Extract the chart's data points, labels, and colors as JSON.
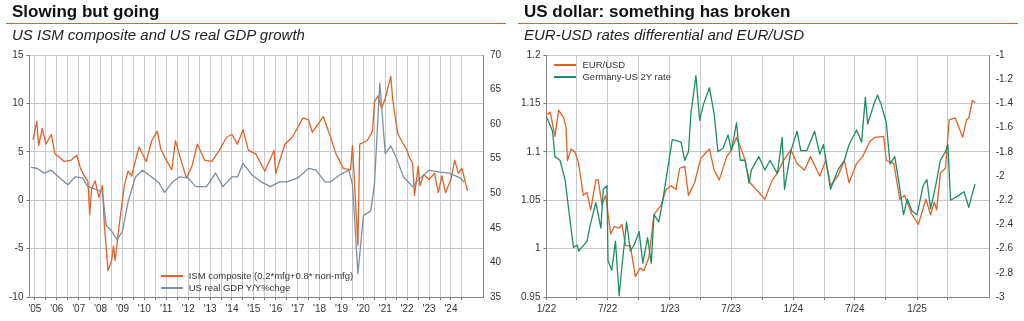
{
  "chart_data": [
    {
      "type": "line",
      "title": "Slowing but going",
      "subtitle": "US ISM composite and US real GDP growth",
      "xlim": [
        "2005-04",
        "2026-01"
      ],
      "xticks": [
        {
          "value": "2005-07",
          "label": "'05"
        },
        {
          "value": "2006-01",
          "label": null
        },
        {
          "value": "2006-07",
          "label": "'06"
        },
        {
          "value": "2007-01",
          "label": null
        },
        {
          "value": "2007-07",
          "label": "'07"
        },
        {
          "value": "2008-01",
          "label": null
        },
        {
          "value": "2008-07",
          "label": "'08"
        },
        {
          "value": "2009-01",
          "label": null
        },
        {
          "value": "2009-07",
          "label": "'09"
        },
        {
          "value": "2010-01",
          "label": null
        },
        {
          "value": "2010-07",
          "label": "'10"
        },
        {
          "value": "2011-01",
          "label": null
        },
        {
          "value": "2011-07",
          "label": "'11"
        },
        {
          "value": "2012-01",
          "label": null
        },
        {
          "value": "2012-07",
          "label": "'12"
        },
        {
          "value": "2013-01",
          "label": null
        },
        {
          "value": "2013-07",
          "label": "'13"
        },
        {
          "value": "2014-01",
          "label": null
        },
        {
          "value": "2014-07",
          "label": "'14"
        },
        {
          "value": "2015-01",
          "label": null
        },
        {
          "value": "2015-07",
          "label": "'15"
        },
        {
          "value": "2016-01",
          "label": null
        },
        {
          "value": "2016-07",
          "label": "'16"
        },
        {
          "value": "2017-01",
          "label": null
        },
        {
          "value": "2017-07",
          "label": "'17"
        },
        {
          "value": "2018-01",
          "label": null
        },
        {
          "value": "2018-07",
          "label": "'18"
        },
        {
          "value": "2019-01",
          "label": null
        },
        {
          "value": "2019-07",
          "label": "'19"
        },
        {
          "value": "2020-01",
          "label": null
        },
        {
          "value": "2020-07",
          "label": "'20"
        },
        {
          "value": "2021-01",
          "label": null
        },
        {
          "value": "2021-07",
          "label": "'21"
        },
        {
          "value": "2022-01",
          "label": null
        },
        {
          "value": "2022-07",
          "label": "'22"
        },
        {
          "value": "2023-01",
          "label": null
        },
        {
          "value": "2023-07",
          "label": "'23"
        },
        {
          "value": "2024-01",
          "label": null
        },
        {
          "value": "2024-07",
          "label": "'24"
        },
        {
          "value": "2025-01",
          "label": null
        }
      ],
      "ylim": [
        -10,
        15
      ],
      "yticks": [
        -10,
        -5,
        0,
        5,
        10,
        15
      ],
      "y2lim": [
        35,
        70
      ],
      "y2ticks": [
        35,
        40,
        45,
        50,
        55,
        60,
        65,
        70
      ],
      "grid": true,
      "legend": "bottom",
      "series": [
        {
          "name": "ISM composite (0.2*mfg+0.8* non-mfg)",
          "color": "#e0622b",
          "axis": "y2",
          "x": [
            "2005-06",
            "2005-08",
            "2005-09",
            "2005-11",
            "2006-01",
            "2006-04",
            "2006-06",
            "2006-08",
            "2006-11",
            "2007-03",
            "2007-06",
            "2007-08",
            "2007-10",
            "2007-12",
            "2008-01",
            "2008-02",
            "2008-04",
            "2008-06",
            "2008-08",
            "2008-09",
            "2008-11",
            "2009-01",
            "2009-02",
            "2009-03",
            "2009-05",
            "2009-08",
            "2009-10",
            "2009-12",
            "2010-04",
            "2010-08",
            "2010-11",
            "2011-02",
            "2011-04",
            "2011-07",
            "2011-10",
            "2011-12",
            "2012-02",
            "2012-06",
            "2012-09",
            "2012-12",
            "2013-04",
            "2013-08",
            "2013-12",
            "2014-04",
            "2014-07",
            "2014-10",
            "2015-01",
            "2015-04",
            "2015-08",
            "2016-01",
            "2016-06",
            "2016-07",
            "2016-12",
            "2017-04",
            "2017-10",
            "2018-01",
            "2018-03",
            "2018-09",
            "2019-01",
            "2019-04",
            "2019-08",
            "2019-12",
            "2020-01",
            "2020-04",
            "2020-05",
            "2020-09",
            "2020-12",
            "2021-01",
            "2021-03",
            "2021-05",
            "2021-07",
            "2021-10",
            "2021-11",
            "2022-01",
            "2022-02",
            "2022-05",
            "2022-07",
            "2022-08",
            "2022-10",
            "2022-11",
            "2023-01",
            "2023-02",
            "2023-04",
            "2023-07",
            "2023-10",
            "2023-12",
            "2024-02",
            "2024-04",
            "2024-07",
            "2024-09",
            "2024-11",
            "2025-01",
            "2025-03",
            "2025-04"
          ],
          "values": [
            57.8,
            60.4,
            56.9,
            59.4,
            57.1,
            58.5,
            55.7,
            55.3,
            54.6,
            54.8,
            55.5,
            53.6,
            52.5,
            51.8,
            46.9,
            50.6,
            51.8,
            49.4,
            51.1,
            45.5,
            38.8,
            40.3,
            42.4,
            40.3,
            45.0,
            51.1,
            53.2,
            52.5,
            56.7,
            54.6,
            57.6,
            59.0,
            56.4,
            54.8,
            53.4,
            57.6,
            55.7,
            52.2,
            53.9,
            57.1,
            54.8,
            54.6,
            56.2,
            58.1,
            58.5,
            57.1,
            59.2,
            56.2,
            55.7,
            53.2,
            56.2,
            52.9,
            57.1,
            58.1,
            60.9,
            60.6,
            58.8,
            61.1,
            58.1,
            55.7,
            53.6,
            53.4,
            56.9,
            42.5,
            57.1,
            57.6,
            59.0,
            63.2,
            64.1,
            62.3,
            63.7,
            66.9,
            63.7,
            59.9,
            58.5,
            57.1,
            56.2,
            55.3,
            54.3,
            49.7,
            53.9,
            51.1,
            52.7,
            52.0,
            52.9,
            50.1,
            52.5,
            50.1,
            52.0,
            54.8,
            52.9,
            53.6,
            51.5,
            50.4
          ]
        },
        {
          "name": "US real GDP Y/Y%chge",
          "color": "#7a8fa0",
          "x": [
            "2005-05",
            "2005-08",
            "2005-12",
            "2006-04",
            "2006-08",
            "2007-01",
            "2007-05",
            "2007-09",
            "2007-12",
            "2008-05",
            "2008-08",
            "2008-10",
            "2009-01",
            "2009-04",
            "2009-07",
            "2009-10",
            "2010-02",
            "2010-06",
            "2010-11",
            "2011-03",
            "2011-06",
            "2011-10",
            "2012-02",
            "2012-07",
            "2012-11",
            "2013-05",
            "2013-10",
            "2014-02",
            "2014-07",
            "2014-10",
            "2015-01",
            "2015-06",
            "2015-11",
            "2016-04",
            "2016-09",
            "2017-01",
            "2017-07",
            "2018-01",
            "2018-05",
            "2018-10",
            "2019-01",
            "2019-06",
            "2019-11",
            "2020-01",
            "2020-04",
            "2020-07",
            "2020-11",
            "2021-01",
            "2021-04",
            "2021-07",
            "2021-10",
            "2022-01",
            "2022-05",
            "2022-10",
            "2023-01",
            "2023-07",
            "2024-01",
            "2024-06",
            "2024-12",
            "2025-02"
          ],
          "values": [
            3.4,
            3.3,
            2.8,
            3.1,
            2.4,
            1.6,
            2.4,
            2.3,
            1.4,
            1.1,
            0.8,
            -2.6,
            -3.2,
            -4.1,
            -3.2,
            -0.2,
            2.4,
            3.1,
            2.4,
            1.8,
            0.8,
            1.8,
            2.4,
            2.3,
            1.4,
            1.4,
            2.8,
            1.4,
            2.4,
            2.4,
            3.8,
            2.6,
            1.9,
            1.4,
            1.9,
            1.9,
            2.3,
            3.3,
            3.1,
            1.9,
            1.9,
            2.6,
            3.1,
            1.6,
            -7.6,
            -1.6,
            -1.1,
            1.6,
            12.1,
            4.8,
            5.6,
            4.4,
            2.4,
            1.4,
            2.1,
            3.1,
            2.9,
            2.8,
            2.3,
            1.9
          ]
        }
      ]
    },
    {
      "type": "line",
      "title": "US dollar: something has broken",
      "subtitle": "EUR-USD rates differential and EUR/USD",
      "xlim": [
        "2022-01-01",
        "2025-08-04"
      ],
      "xticks": [
        {
          "value": "2022-01",
          "label": "1/22"
        },
        {
          "value": "2022-04",
          "label": null
        },
        {
          "value": "2022-07",
          "label": "7/22"
        },
        {
          "value": "2022-10",
          "label": null
        },
        {
          "value": "2023-01",
          "label": "1/23"
        },
        {
          "value": "2023-04",
          "label": null
        },
        {
          "value": "2023-07",
          "label": "7/23"
        },
        {
          "value": "2023-10",
          "label": null
        },
        {
          "value": "2024-01",
          "label": "1/24"
        },
        {
          "value": "2024-04",
          "label": null
        },
        {
          "value": "2024-07",
          "label": "7/24"
        },
        {
          "value": "2024-10",
          "label": null
        },
        {
          "value": "2025-01",
          "label": "1/25"
        },
        {
          "value": "2025-04",
          "label": null
        }
      ],
      "ylim": [
        0.95,
        1.2
      ],
      "yticks": [
        0.95,
        1,
        1.05,
        1.1,
        1.15,
        1.2
      ],
      "y2lim": [
        -3,
        -1
      ],
      "y2ticks": [
        -3,
        -2.8,
        -2.6,
        -2.4,
        -2.2,
        -2,
        -1.8,
        -1.6,
        -1.4,
        -1.2,
        -1
      ],
      "grid": true,
      "legend": "top left",
      "series": [
        {
          "name": "EUR/USD",
          "color": "#e0622b",
          "x": [
            "2022-01-01",
            "2022-01-12",
            "2022-01-26",
            "2022-02-06",
            "2022-02-21",
            "2022-02-28",
            "2022-03-04",
            "2022-03-15",
            "2022-03-26",
            "2022-04-06",
            "2022-04-20",
            "2022-05-01",
            "2022-05-12",
            "2022-05-27",
            "2022-06-03",
            "2022-06-14",
            "2022-06-25",
            "2022-07-10",
            "2022-07-21",
            "2022-08-04",
            "2022-08-12",
            "2022-08-23",
            "2022-09-06",
            "2022-09-21",
            "2022-10-05",
            "2022-10-16",
            "2022-10-31",
            "2022-11-15",
            "2022-12-06",
            "2022-12-21",
            "2023-01-05",
            "2023-01-19",
            "2023-01-30",
            "2023-02-14",
            "2023-02-25",
            "2023-03-15",
            "2023-04-02",
            "2023-04-20",
            "2023-04-28",
            "2023-05-12",
            "2023-05-27",
            "2023-06-18",
            "2023-07-02",
            "2023-07-17",
            "2023-08-08",
            "2023-08-26",
            "2023-09-21",
            "2023-10-09",
            "2023-10-31",
            "2023-11-15",
            "2023-12-03",
            "2023-12-25",
            "2024-01-12",
            "2024-02-03",
            "2024-02-21",
            "2024-03-19",
            "2024-04-06",
            "2024-04-20",
            "2024-05-12",
            "2024-05-31",
            "2024-06-14",
            "2024-07-06",
            "2024-07-24",
            "2024-08-15",
            "2024-08-30",
            "2024-09-24",
            "2024-10-02",
            "2024-10-24",
            "2024-11-11",
            "2024-11-25",
            "2024-12-17",
            "2025-01-05",
            "2025-01-27",
            "2025-02-10",
            "2025-02-21",
            "2025-02-28",
            "2025-03-11",
            "2025-03-26",
            "2025-04-06",
            "2025-04-24",
            "2025-05-16",
            "2025-05-27",
            "2025-06-03",
            "2025-06-14",
            "2025-06-21"
          ],
          "values": [
            1.138,
            1.141,
            1.116,
            1.143,
            1.135,
            1.125,
            1.091,
            1.103,
            1.1,
            1.088,
            1.055,
            1.058,
            1.04,
            1.071,
            1.071,
            1.045,
            1.055,
            1.015,
            1.023,
            1.021,
            1.025,
            1.003,
            1.003,
            0.971,
            0.98,
            0.977,
            0.991,
            1.035,
            1.045,
            1.061,
            1.065,
            1.061,
            1.083,
            1.085,
            1.055,
            1.068,
            1.093,
            1.1,
            1.103,
            1.081,
            1.071,
            1.095,
            1.102,
            1.115,
            1.095,
            1.068,
            1.058,
            1.051,
            1.071,
            1.078,
            1.091,
            1.102,
            1.088,
            1.081,
            1.095,
            1.075,
            1.091,
            1.065,
            1.075,
            1.091,
            1.068,
            1.088,
            1.095,
            1.111,
            1.115,
            1.116,
            1.091,
            1.088,
            1.051,
            1.055,
            1.035,
            1.025,
            1.051,
            1.035,
            1.048,
            1.04,
            1.078,
            1.083,
            1.133,
            1.135,
            1.115,
            1.133,
            1.135,
            1.153,
            1.151
          ]
        },
        {
          "name": "Germany-US 2Y rate",
          "color": "#1e8c6a",
          "axis": "y2",
          "x": [
            "2022-01-01",
            "2022-01-19",
            "2022-01-26",
            "2022-02-10",
            "2022-02-25",
            "2022-03-11",
            "2022-03-22",
            "2022-04-02",
            "2022-04-06",
            "2022-05-01",
            "2022-05-09",
            "2022-05-27",
            "2022-06-11",
            "2022-06-18",
            "2022-06-29",
            "2022-07-02",
            "2022-07-13",
            "2022-07-24",
            "2022-08-04",
            "2022-08-12",
            "2022-08-26",
            "2022-09-06",
            "2022-09-17",
            "2022-10-02",
            "2022-10-13",
            "2022-10-27",
            "2022-11-07",
            "2022-11-15",
            "2022-11-29",
            "2022-12-10",
            "2022-12-25",
            "2023-01-08",
            "2023-01-23",
            "2023-02-03",
            "2023-02-14",
            "2023-02-25",
            "2023-03-04",
            "2023-03-19",
            "2023-03-30",
            "2023-04-10",
            "2023-04-28",
            "2023-05-12",
            "2023-05-23",
            "2023-06-07",
            "2023-06-22",
            "2023-07-02",
            "2023-07-17",
            "2023-07-28",
            "2023-08-12",
            "2023-08-23",
            "2023-08-30",
            "2023-09-21",
            "2023-10-09",
            "2023-10-24",
            "2023-11-15",
            "2023-11-29",
            "2023-12-06",
            "2023-12-25",
            "2024-01-12",
            "2024-01-23",
            "2024-02-10",
            "2024-03-04",
            "2024-03-19",
            "2024-03-30",
            "2024-04-13",
            "2024-04-20",
            "2024-05-12",
            "2024-05-31",
            "2024-06-14",
            "2024-07-06",
            "2024-07-21",
            "2024-08-01",
            "2024-08-08",
            "2024-08-26",
            "2024-09-06",
            "2024-09-17",
            "2024-10-02",
            "2024-10-13",
            "2024-10-27",
            "2024-11-07",
            "2024-11-22",
            "2024-12-03",
            "2024-12-17",
            "2025-01-01",
            "2025-01-19",
            "2025-01-30",
            "2025-02-10",
            "2025-02-25",
            "2025-03-11",
            "2025-03-26",
            "2025-04-02",
            "2025-04-10",
            "2025-05-05",
            "2025-05-20",
            "2025-06-03",
            "2025-06-11",
            "2025-06-21"
          ],
          "values": [
            -1.51,
            -1.63,
            -1.84,
            -1.87,
            -2.03,
            -2.35,
            -2.59,
            -2.57,
            -2.62,
            -2.54,
            -2.42,
            -2.22,
            -2.43,
            -2.11,
            -2.08,
            -2.7,
            -2.78,
            -2.54,
            -2.99,
            -2.75,
            -2.38,
            -2.62,
            -2.57,
            -2.46,
            -2.72,
            -2.51,
            -2.72,
            -2.32,
            -2.38,
            -2.22,
            -1.95,
            -1.7,
            -1.71,
            -1.72,
            -1.87,
            -1.8,
            -1.49,
            -1.17,
            -1.54,
            -1.41,
            -1.27,
            -1.49,
            -1.8,
            -1.77,
            -1.66,
            -1.79,
            -1.56,
            -1.87,
            -1.87,
            -2.06,
            -1.95,
            -1.84,
            -1.95,
            -1.87,
            -1.98,
            -1.68,
            -2.11,
            -1.79,
            -1.63,
            -1.79,
            -1.79,
            -1.63,
            -1.82,
            -1.74,
            -1.98,
            -2.11,
            -1.95,
            -1.87,
            -1.74,
            -1.62,
            -1.72,
            -1.35,
            -1.57,
            -1.41,
            -1.33,
            -1.41,
            -1.56,
            -1.9,
            -1.84,
            -2.03,
            -2.32,
            -2.19,
            -2.29,
            -2.32,
            -2.08,
            -2.03,
            -2.27,
            -2.08,
            -1.87,
            -1.8,
            -1.74,
            -2.2,
            -2.16,
            -2.13,
            -2.26,
            -2.17,
            -2.07
          ]
        }
      ]
    }
  ]
}
